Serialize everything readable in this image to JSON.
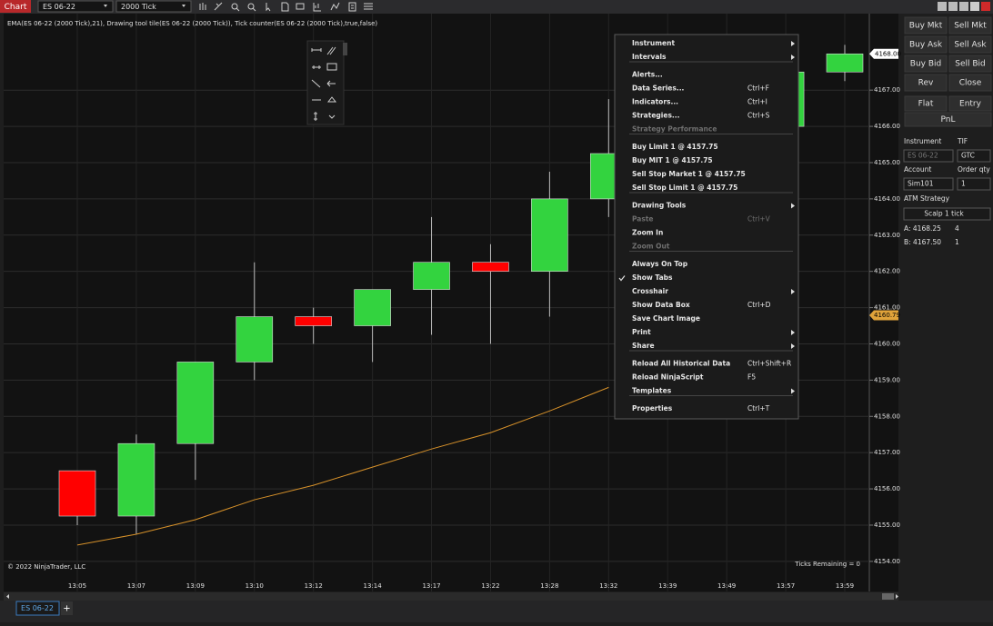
{
  "toolbar": {
    "title": "Chart",
    "instrument": "ES 06-22",
    "interval": "2000 Tick"
  },
  "chart": {
    "type": "candlestick",
    "indicator_label": "EMA(ES 06-22 (2000 Tick),21), Drawing tool tile(ES 06-22 (2000 Tick)), Tick counter(ES 06-22 (2000 Tick),true,false)",
    "categories": [
      "13:05",
      "13:07",
      "13:09",
      "13:10",
      "13:12",
      "13:14",
      "13:17",
      "13:22",
      "13:28",
      "13:32",
      "13:39",
      "13:49",
      "13:57",
      "13:59"
    ],
    "candles": [
      {
        "open": 4156.5,
        "high": 4156.5,
        "low": 4155,
        "close": 4155.25
      },
      {
        "open": 4155.25,
        "high": 4157.5,
        "low": 4154.75,
        "close": 4157.25
      },
      {
        "open": 4157.25,
        "high": 4159.5,
        "low": 4156.25,
        "close": 4159.5
      },
      {
        "open": 4159.5,
        "high": 4162.25,
        "low": 4159,
        "close": 4160.75
      },
      {
        "open": 4160.75,
        "high": 4161,
        "low": 4160,
        "close": 4160.5
      },
      {
        "open": 4160.5,
        "high": 4161.5,
        "low": 4159.5,
        "close": 4161.5
      },
      {
        "open": 4161.5,
        "high": 4163.5,
        "low": 4160.25,
        "close": 4162.25
      },
      {
        "open": 4162.25,
        "high": 4162.75,
        "low": 4160,
        "close": 4162
      },
      {
        "open": 4162,
        "high": 4164.75,
        "low": 4160.75,
        "close": 4164
      },
      {
        "open": 4164,
        "high": 4166.75,
        "low": 4163.5,
        "close": 4165.25
      },
      null,
      null,
      {
        "open": 4166,
        "high": 4167.5,
        "low": 4166,
        "close": 4167.5
      },
      {
        "open": 4167.5,
        "high": 4168.25,
        "low": 4167.25,
        "close": 4168
      }
    ],
    "up_color": "#33d33f",
    "down_color": "#ff0000",
    "ema": {
      "color": "#d8922a",
      "values": [
        4154.45,
        4154.75,
        4155.15,
        4155.7,
        4156.1,
        4156.6,
        4157.1,
        4157.55,
        4158.15,
        4158.8,
        null,
        null,
        null,
        null
      ]
    },
    "ylim": [
      4153.17,
      4169.11
    ],
    "yticks": [
      {
        "value": 4154,
        "label": "4154.00"
      },
      {
        "value": 4155,
        "label": "4155.00"
      },
      {
        "value": 4156,
        "label": "4156.00"
      },
      {
        "value": 4157,
        "label": "4157.00"
      },
      {
        "value": 4158,
        "label": "4158.00"
      },
      {
        "value": 4159,
        "label": "4159.00"
      },
      {
        "value": 4160,
        "label": "4160.00"
      },
      {
        "value": 4161,
        "label": "4161.00"
      },
      {
        "value": 4162,
        "label": "4162.00"
      },
      {
        "value": 4163,
        "label": "4163.00"
      },
      {
        "value": 4164,
        "label": "4164.00"
      },
      {
        "value": 4165,
        "label": "4165.00"
      },
      {
        "value": 4166,
        "label": "4166.00"
      },
      {
        "value": 4167,
        "label": "4167.00"
      }
    ],
    "last_price": {
      "value": 4168,
      "label": "4168.00"
    },
    "marker_price": 4160.79,
    "grid": true,
    "copyright": "© 2022 NinjaTrader, LLC",
    "ticks_remaining": "Ticks Remaining = 0"
  },
  "context_menu": {
    "groups": [
      [
        {
          "label": "Instrument",
          "submenu": true
        },
        {
          "label": "Intervals",
          "submenu": true
        }
      ],
      [
        {
          "label": "Alerts..."
        },
        {
          "label": "Data Series...",
          "shortcut": "Ctrl+F"
        },
        {
          "label": "Indicators...",
          "shortcut": "Ctrl+I"
        },
        {
          "label": "Strategies...",
          "shortcut": "Ctrl+S"
        },
        {
          "label": "Strategy Performance",
          "disabled": true
        }
      ],
      [
        {
          "label": "Buy Limit 1 @ 4157.75"
        },
        {
          "label": "Buy MIT 1 @ 4157.75"
        },
        {
          "label": "Sell Stop Market 1 @ 4157.75"
        },
        {
          "label": "Sell Stop Limit 1 @ 4157.75"
        }
      ],
      [
        {
          "label": "Drawing Tools",
          "submenu": true
        },
        {
          "label": "Paste",
          "shortcut": "Ctrl+V",
          "disabled": true
        },
        {
          "label": "Zoom In"
        },
        {
          "label": "Zoom Out",
          "disabled": true
        }
      ],
      [
        {
          "label": "Always On Top"
        },
        {
          "label": "Show Tabs",
          "checked": true
        },
        {
          "label": "Crosshair",
          "submenu": true
        },
        {
          "label": "Show Data Box",
          "shortcut": "Ctrl+D"
        },
        {
          "label": "Save Chart Image"
        },
        {
          "label": "Print",
          "submenu": true
        },
        {
          "label": "Share",
          "submenu": true
        }
      ],
      [
        {
          "label": "Reload All Historical Data",
          "shortcut": "Ctrl+Shift+R"
        },
        {
          "label": "Reload NinjaScript",
          "shortcut": "F5"
        },
        {
          "label": "Templates",
          "submenu": true
        }
      ],
      [
        {
          "label": "Properties",
          "shortcut": "Ctrl+T"
        }
      ]
    ]
  },
  "order_panel": {
    "buttons": [
      [
        "Buy Mkt",
        "Sell Mkt"
      ],
      [
        "Buy Ask",
        "Sell Ask"
      ],
      [
        "Buy Bid",
        "Sell Bid"
      ],
      [
        "Rev",
        "Close"
      ]
    ],
    "flat": "Flat",
    "entry": "Entry",
    "pnl": "PnL",
    "instrument_label": "Instrument",
    "tif_label": "TIF",
    "instrument": "ES 06-22",
    "tif": "GTC",
    "account_label": "Account",
    "qty_label": "Order qty",
    "account": "Sim101",
    "qty": "1",
    "atm_label": "ATM Strategy",
    "atm": "Scalp 1 tick",
    "ask": "A: 4168.25",
    "ask_size": "4",
    "bid": "B: 4167.50",
    "bid_size": "1"
  },
  "tabs": [
    "ES 06-22",
    "+"
  ]
}
